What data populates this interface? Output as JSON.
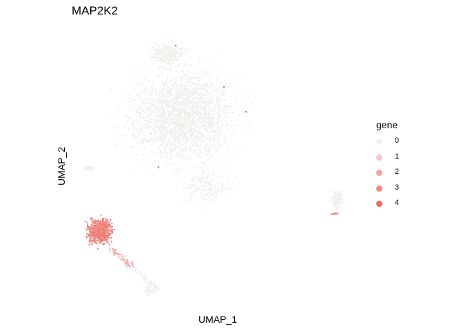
{
  "chart_data": {
    "type": "scatter",
    "title": "MAP2K2",
    "xlabel": "UMAP_1",
    "ylabel": "UMAP_2",
    "grid": false,
    "legend": {
      "title": "gene",
      "placement": "right",
      "entries": [
        {
          "label": "0",
          "value": 0,
          "color": "#F0EFEC"
        },
        {
          "label": "1",
          "value": 1,
          "color": "#F6C8C4"
        },
        {
          "label": "2",
          "value": 2,
          "color": "#F4A4A0"
        },
        {
          "label": "3",
          "value": 3,
          "color": "#F08A84"
        },
        {
          "label": "4",
          "value": 4,
          "color": "#EC6A62"
        }
      ]
    },
    "color_scale": {
      "low": "#F0EFEC",
      "high": "#EC6A62"
    },
    "clusters": [
      {
        "id": "main",
        "expression": 0,
        "sparse_expressed": [
          [
            0.42,
            0.86
          ],
          [
            0.4,
            0.4
          ],
          [
            0.5,
            0.55
          ],
          [
            0.55,
            0.78
          ]
        ]
      },
      {
        "id": "lower-left",
        "expression": 3
      },
      {
        "id": "tail",
        "expression": 1
      },
      {
        "id": "right-small",
        "expression": 0,
        "partial_expression": 2
      }
    ]
  }
}
